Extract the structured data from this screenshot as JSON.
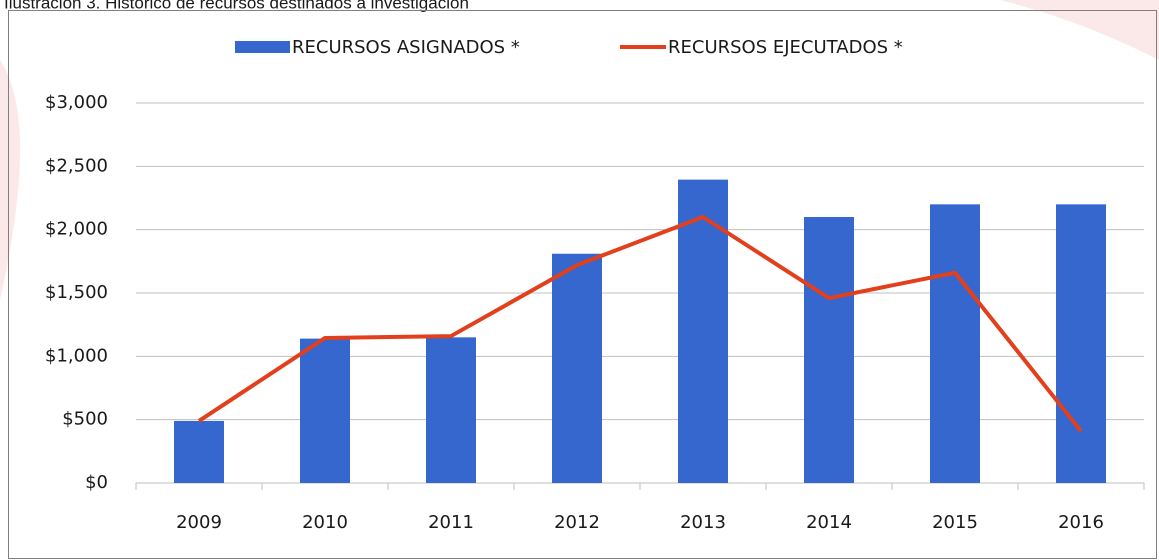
{
  "chart_data": {
    "type": "bar_line",
    "title": "Ilustración 3. Histórico de recursos destinados a investigación",
    "categories": [
      "2009",
      "2010",
      "2011",
      "2012",
      "2013",
      "2014",
      "2015",
      "2016"
    ],
    "series": [
      {
        "name": "RECURSOS ASIGNADOS *",
        "type": "bar",
        "color": "#3567cf",
        "values": [
          490,
          1140,
          1150,
          1810,
          2395,
          2100,
          2200,
          2200
        ]
      },
      {
        "name": "RECURSOS EJECUTADOS *",
        "type": "line",
        "color": "#e2401c",
        "values": [
          490,
          1145,
          1160,
          1720,
          2100,
          1460,
          1660,
          410
        ]
      }
    ],
    "ylim": [
      0,
      3000
    ],
    "yticks": [
      {
        "value": 0,
        "label": "$0"
      },
      {
        "value": 500,
        "label": "$500"
      },
      {
        "value": 1000,
        "label": "$1,000"
      },
      {
        "value": 1500,
        "label": "$1,500"
      },
      {
        "value": 2000,
        "label": "$2,000"
      },
      {
        "value": 2500,
        "label": "$2,500"
      },
      {
        "value": 3000,
        "label": "$3,000"
      }
    ],
    "grid": true,
    "legend": "top"
  }
}
